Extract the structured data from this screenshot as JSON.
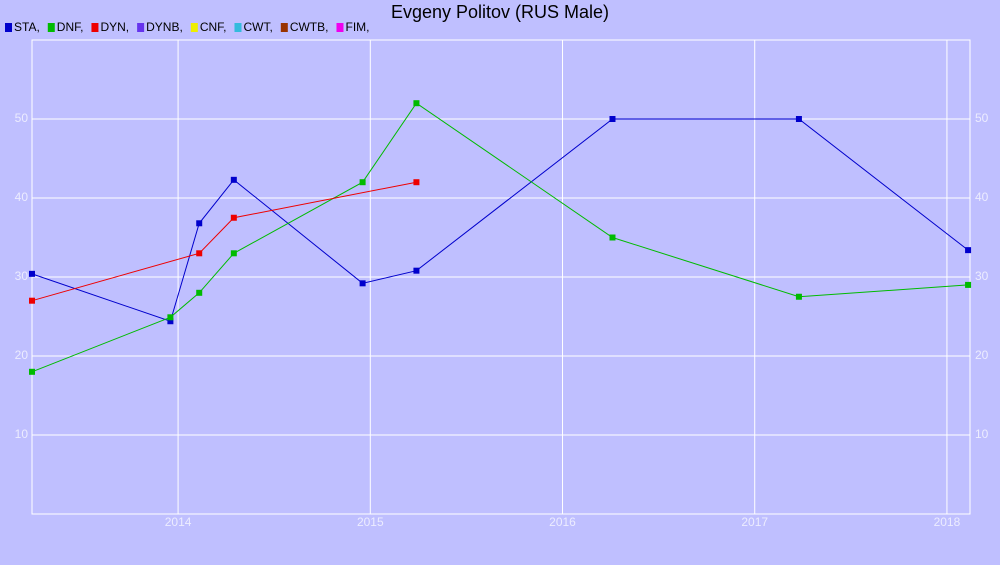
{
  "chart_data": {
    "type": "line",
    "title": "Evgeny Politov (RUS Male)",
    "xlim": [
      2013.24,
      2018.12
    ],
    "xticks": [
      2014,
      2015,
      2016,
      2017,
      2018
    ],
    "ylim": [
      0,
      60
    ],
    "yticks": [
      10,
      20,
      30,
      40,
      50
    ],
    "grid": true,
    "series": [
      {
        "name": "STA,",
        "color": "#0000cc",
        "x": [
          2013.24,
          2013.96,
          2014.11,
          2014.29,
          2014.96,
          2015.24,
          2016.26,
          2017.23,
          2018.11
        ],
        "values": [
          30.4,
          24.4,
          36.8,
          42.3,
          29.2,
          30.8,
          50,
          50,
          33.4
        ]
      },
      {
        "name": "DNF,",
        "color": "#00bb00",
        "x": [
          2013.24,
          2013.96,
          2014.11,
          2014.29,
          2014.96,
          2015.24,
          2016.26,
          2017.23,
          2018.11
        ],
        "values": [
          18,
          24.9,
          28,
          33,
          42,
          52,
          35,
          27.5,
          29
        ]
      },
      {
        "name": "DYN,",
        "color": "#ee0000",
        "x": [
          2013.24,
          2014.11,
          2014.29,
          2015.24
        ],
        "values": [
          27,
          33,
          37.5,
          42
        ]
      },
      {
        "name": "DYNB,",
        "color": "#6633ee",
        "x": [],
        "values": []
      },
      {
        "name": "CNF,",
        "color": "#eeee00",
        "x": [],
        "values": []
      },
      {
        "name": "CWT,",
        "color": "#33bbdd",
        "x": [],
        "values": []
      },
      {
        "name": "CWTB,",
        "color": "#993300",
        "x": [],
        "values": []
      },
      {
        "name": "FIM,",
        "color": "#ee00ee",
        "x": [],
        "values": []
      }
    ]
  }
}
